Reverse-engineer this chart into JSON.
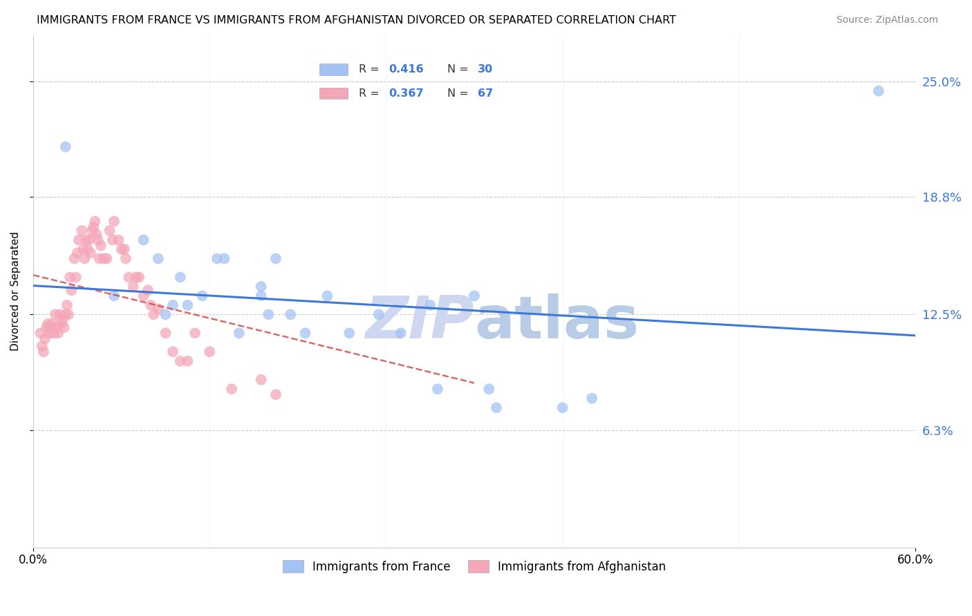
{
  "title": "IMMIGRANTS FROM FRANCE VS IMMIGRANTS FROM AFGHANISTAN DIVORCED OR SEPARATED CORRELATION CHART",
  "source": "Source: ZipAtlas.com",
  "ylabel": "Divorced or Separated",
  "y_tick_labels_right": [
    "25.0%",
    "18.8%",
    "12.5%",
    "6.3%"
  ],
  "y_tick_positions": [
    0.25,
    0.188,
    0.125,
    0.063
  ],
  "xlim": [
    0.0,
    0.6
  ],
  "ylim": [
    0.0,
    0.275
  ],
  "legend_label_france": "Immigrants from France",
  "legend_label_afghanistan": "Immigrants from Afghanistan",
  "color_france": "#a4c2f4",
  "color_afghanistan": "#f4a7b9",
  "color_trendline_france": "#3c78d8",
  "color_trendline_afghanistan": "#cc4444",
  "color_watermark_zip": "#cdd8f0",
  "color_watermark_atlas": "#b8cce8",
  "background_color": "#ffffff",
  "grid_color": "#cccccc",
  "france_x": [
    0.022,
    0.055,
    0.075,
    0.085,
    0.09,
    0.095,
    0.1,
    0.105,
    0.115,
    0.125,
    0.13,
    0.14,
    0.155,
    0.155,
    0.16,
    0.165,
    0.175,
    0.185,
    0.2,
    0.215,
    0.235,
    0.25,
    0.27,
    0.275,
    0.3,
    0.31,
    0.315,
    0.36,
    0.38,
    0.575
  ],
  "france_y": [
    0.215,
    0.135,
    0.165,
    0.155,
    0.125,
    0.13,
    0.145,
    0.13,
    0.135,
    0.155,
    0.155,
    0.115,
    0.14,
    0.135,
    0.125,
    0.155,
    0.125,
    0.115,
    0.135,
    0.115,
    0.125,
    0.115,
    0.13,
    0.085,
    0.135,
    0.085,
    0.075,
    0.075,
    0.08,
    0.245
  ],
  "afghanistan_x": [
    0.005,
    0.006,
    0.007,
    0.008,
    0.009,
    0.01,
    0.011,
    0.012,
    0.013,
    0.014,
    0.015,
    0.016,
    0.017,
    0.018,
    0.019,
    0.02,
    0.021,
    0.022,
    0.023,
    0.024,
    0.025,
    0.026,
    0.028,
    0.029,
    0.03,
    0.031,
    0.033,
    0.034,
    0.035,
    0.036,
    0.037,
    0.038,
    0.039,
    0.04,
    0.041,
    0.042,
    0.043,
    0.044,
    0.045,
    0.046,
    0.048,
    0.05,
    0.052,
    0.054,
    0.055,
    0.058,
    0.06,
    0.062,
    0.063,
    0.065,
    0.068,
    0.07,
    0.072,
    0.075,
    0.078,
    0.08,
    0.082,
    0.085,
    0.09,
    0.095,
    0.1,
    0.105,
    0.11,
    0.12,
    0.135,
    0.155,
    0.165
  ],
  "afghanistan_y": [
    0.115,
    0.108,
    0.105,
    0.112,
    0.118,
    0.12,
    0.115,
    0.118,
    0.12,
    0.115,
    0.125,
    0.118,
    0.115,
    0.125,
    0.12,
    0.122,
    0.118,
    0.125,
    0.13,
    0.125,
    0.145,
    0.138,
    0.155,
    0.145,
    0.158,
    0.165,
    0.17,
    0.16,
    0.155,
    0.165,
    0.16,
    0.165,
    0.158,
    0.17,
    0.172,
    0.175,
    0.168,
    0.165,
    0.155,
    0.162,
    0.155,
    0.155,
    0.17,
    0.165,
    0.175,
    0.165,
    0.16,
    0.16,
    0.155,
    0.145,
    0.14,
    0.145,
    0.145,
    0.135,
    0.138,
    0.13,
    0.125,
    0.128,
    0.115,
    0.105,
    0.1,
    0.1,
    0.115,
    0.105,
    0.085,
    0.09,
    0.082
  ]
}
